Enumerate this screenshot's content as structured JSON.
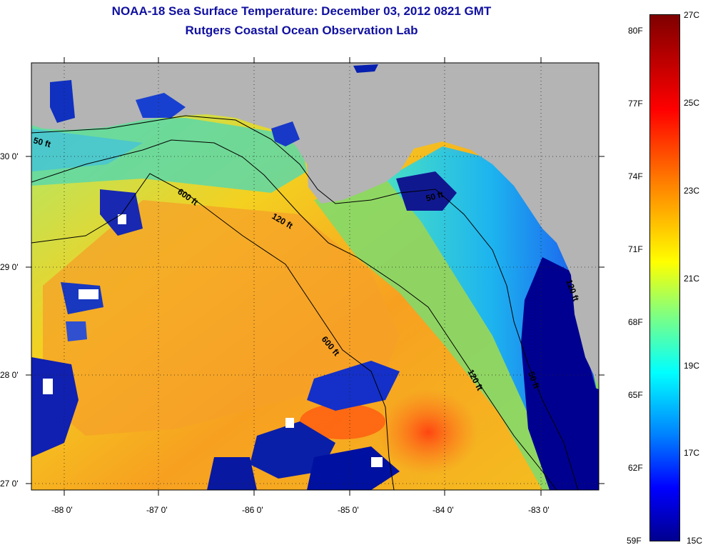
{
  "title": {
    "line1": "NOAA-18 Sea Surface Temperature:  December 03, 2012 0821 GMT",
    "line2": "Rutgers Coastal Ocean Observation Lab"
  },
  "map": {
    "longitude_labels": [
      "-88 0'",
      "-87 0'",
      "-86 0'",
      "-85 0'",
      "-84 0'",
      "-83 0'"
    ],
    "latitude_labels": [
      "30 0'",
      "29 0'",
      "28 0'",
      "27 0'"
    ],
    "contour_labels": [
      "50 ft",
      "600 ft",
      "120 ft",
      "50 ft",
      "120 ft",
      "600 ft",
      "120 ft",
      "50 ft"
    ],
    "land_color": "#b4b4b4"
  },
  "colorbar": {
    "fahrenheit": [
      "80F",
      "77F",
      "74F",
      "71F",
      "68F",
      "65F",
      "62F",
      "59F"
    ],
    "celsius": [
      "27C",
      "25C",
      "23C",
      "21C",
      "19C",
      "17C",
      "15C"
    ],
    "range_c": [
      15,
      27
    ],
    "colormap": "jet"
  }
}
